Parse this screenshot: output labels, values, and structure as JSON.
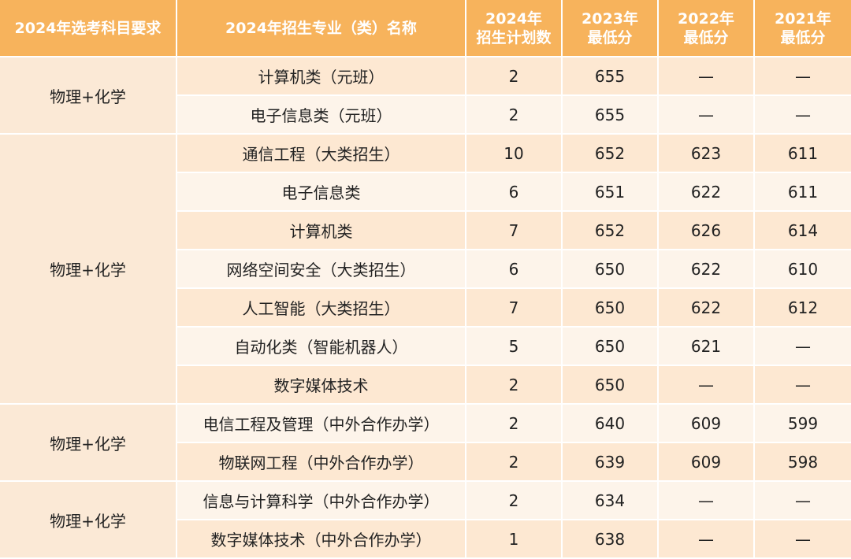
{
  "header": {
    "col1": "2024年选考科目要求",
    "col2": "2024年招生专业（类）名称",
    "col3": [
      "2024年",
      "招生计划数"
    ],
    "col4": [
      "2023年",
      "最低分"
    ],
    "col5": [
      "2022年",
      "最低分"
    ],
    "col6": [
      "2021年",
      "最低分"
    ]
  },
  "groups": [
    {
      "subject": "物理+化学",
      "rows": [
        {
          "major": "计算机类（元班）",
          "plan": "2",
          "s2023": "655",
          "s2022": "—",
          "s2021": "—"
        },
        {
          "major": "电子信息类（元班）",
          "plan": "2",
          "s2023": "655",
          "s2022": "—",
          "s2021": "—"
        }
      ]
    },
    {
      "subject": "物理+化学",
      "rows": [
        {
          "major": "通信工程（大类招生）",
          "plan": "10",
          "s2023": "652",
          "s2022": "623",
          "s2021": "611"
        },
        {
          "major": "电子信息类",
          "plan": "6",
          "s2023": "651",
          "s2022": "622",
          "s2021": "611"
        },
        {
          "major": "计算机类",
          "plan": "7",
          "s2023": "652",
          "s2022": "626",
          "s2021": "614"
        },
        {
          "major": "网络空间安全（大类招生）",
          "plan": "6",
          "s2023": "650",
          "s2022": "622",
          "s2021": "610"
        },
        {
          "major": "人工智能（大类招生）",
          "plan": "7",
          "s2023": "650",
          "s2022": "622",
          "s2021": "612"
        },
        {
          "major": "自动化类（智能机器人）",
          "plan": "5",
          "s2023": "650",
          "s2022": "621",
          "s2021": "—"
        },
        {
          "major": "数字媒体技术",
          "plan": "2",
          "s2023": "650",
          "s2022": "—",
          "s2021": "—"
        }
      ]
    },
    {
      "subject": "物理+化学",
      "rows": [
        {
          "major": "电信工程及管理（中外合作办学）",
          "plan": "2",
          "s2023": "640",
          "s2022": "609",
          "s2021": "599"
        },
        {
          "major": "物联网工程（中外合作办学）",
          "plan": "2",
          "s2023": "639",
          "s2022": "609",
          "s2021": "598"
        }
      ]
    },
    {
      "subject": "物理+化学",
      "rows": [
        {
          "major": "信息与计算科学（中外合作办学）",
          "plan": "2",
          "s2023": "634",
          "s2022": "—",
          "s2021": "—"
        },
        {
          "major": "数字媒体技术（中外合作办学）",
          "plan": "1",
          "s2023": "638",
          "s2022": "—",
          "s2021": "—"
        }
      ]
    }
  ]
}
